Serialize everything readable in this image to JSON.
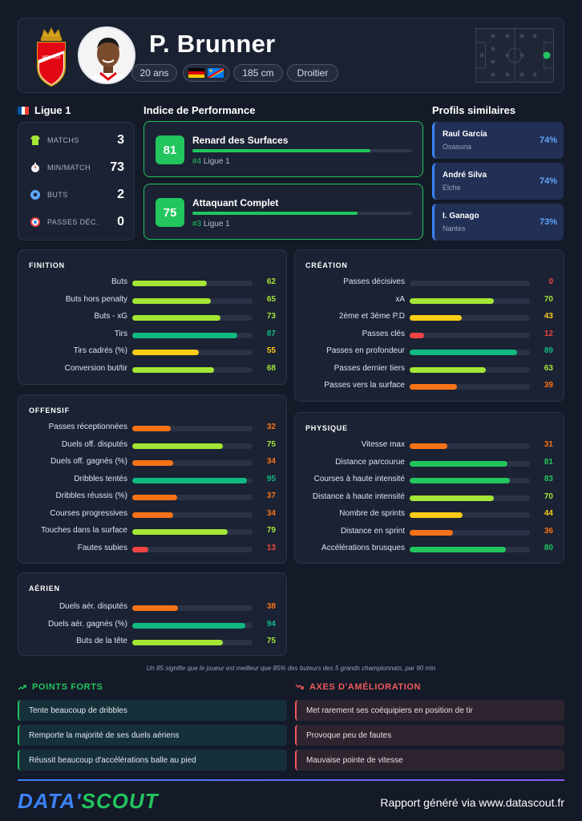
{
  "player": {
    "name": "P. Brunner",
    "age": "20 ans",
    "height": "185 cm",
    "foot": "Droitier",
    "club_badge_text": "MONACO"
  },
  "league": {
    "name": "Ligue 1",
    "stats": [
      {
        "label": "MATCHS",
        "value": "3"
      },
      {
        "label": "MIN/MATCH",
        "value": "73"
      },
      {
        "label": "BUTS",
        "value": "2"
      },
      {
        "label": "PASSES DÉC.",
        "value": "0"
      }
    ]
  },
  "performance": {
    "title": "Indice de Performance",
    "items": [
      {
        "score": "81",
        "title": "Renard des Surfaces",
        "rank": "#4",
        "league": "Ligue 1",
        "fill": 0.81
      },
      {
        "score": "75",
        "title": "Attaquant Complet",
        "rank": "#3",
        "league": "Ligue 1",
        "fill": 0.75
      }
    ]
  },
  "similar": {
    "title": "Profils similaires",
    "items": [
      {
        "name": "Raul García",
        "club": "Osasuna",
        "pct": "74%"
      },
      {
        "name": "André Silva",
        "club": "Elche",
        "pct": "74%"
      },
      {
        "name": "I. Ganago",
        "club": "Nantes",
        "pct": "73%"
      }
    ]
  },
  "groups": {
    "finition": {
      "title": "FINITION",
      "metrics": [
        {
          "label": "Buts",
          "value": 62
        },
        {
          "label": "Buts hors penalty",
          "value": 65
        },
        {
          "label": "Buts - xG",
          "value": 73
        },
        {
          "label": "Tirs",
          "value": 87
        },
        {
          "label": "Tirs cadrés (%)",
          "value": 55
        },
        {
          "label": "Conversion but/tir",
          "value": 68
        }
      ]
    },
    "offensif": {
      "title": "OFFENSIF",
      "metrics": [
        {
          "label": "Passes réceptionnées",
          "value": 32
        },
        {
          "label": "Duels off. disputés",
          "value": 75
        },
        {
          "label": "Duels off. gagnés (%)",
          "value": 34
        },
        {
          "label": "Dribbles tentés",
          "value": 95
        },
        {
          "label": "Dribbles réussis (%)",
          "value": 37
        },
        {
          "label": "Courses progressives",
          "value": 34
        },
        {
          "label": "Touches dans la surface",
          "value": 79
        },
        {
          "label": "Fautes subies",
          "value": 13
        }
      ]
    },
    "aerien": {
      "title": "AÉRIEN",
      "metrics": [
        {
          "label": "Duels aér. disputés",
          "value": 38
        },
        {
          "label": "Duels aér. gagnés (%)",
          "value": 94
        },
        {
          "label": "Buts de la tête",
          "value": 75
        }
      ]
    },
    "creation": {
      "title": "CRÉATION",
      "metrics": [
        {
          "label": "Passes décisives",
          "value": 0
        },
        {
          "label": "xA",
          "value": 70
        },
        {
          "label": "2ème et 3ème P.D",
          "value": 43
        },
        {
          "label": "Passes clés",
          "value": 12
        },
        {
          "label": "Passes en profondeur",
          "value": 89
        },
        {
          "label": "Passes dernier tiers",
          "value": 63
        },
        {
          "label": "Passes vers la surface",
          "value": 39
        }
      ]
    },
    "physique": {
      "title": "PHYSIQUE",
      "metrics": [
        {
          "label": "Vitesse max",
          "value": 31
        },
        {
          "label": "Distance parcourue",
          "value": 81
        },
        {
          "label": "Courses à haute intensité",
          "value": 83
        },
        {
          "label": "Distance à haute intensité",
          "value": 70
        },
        {
          "label": "Nombre de sprints",
          "value": 44
        },
        {
          "label": "Distance en sprint",
          "value": 36
        },
        {
          "label": "Accélérations brusques",
          "value": 80
        }
      ]
    }
  },
  "footnote": "Un 85 signifie que le joueur est meilleur que 85% des buteurs des 5 grands championnats, par 90 min",
  "strengths": {
    "title": "POINTS FORTS",
    "items": [
      "Tente beaucoup de dribbles",
      "Remporte la majorité de ses duels aériens",
      "Réussit beaucoup d'accélérations balle au pied"
    ]
  },
  "weaknesses": {
    "title": "AXES D'AMÉLIORATION",
    "items": [
      "Met rarement ses coéquipiers en position de tir",
      "Provoque peu de fautes",
      "Mauvaise pointe de vitesse"
    ]
  },
  "footer": {
    "logo_part1": "DATA'",
    "logo_part2": "SCOUT",
    "text": "Rapport généré via www.datascout.fr"
  },
  "colors": {
    "green": "#22c55e",
    "lime": "#a3e635",
    "yellow": "#facc15",
    "orange": "#f97316",
    "red": "#ef4444",
    "teal": "#10b981"
  }
}
